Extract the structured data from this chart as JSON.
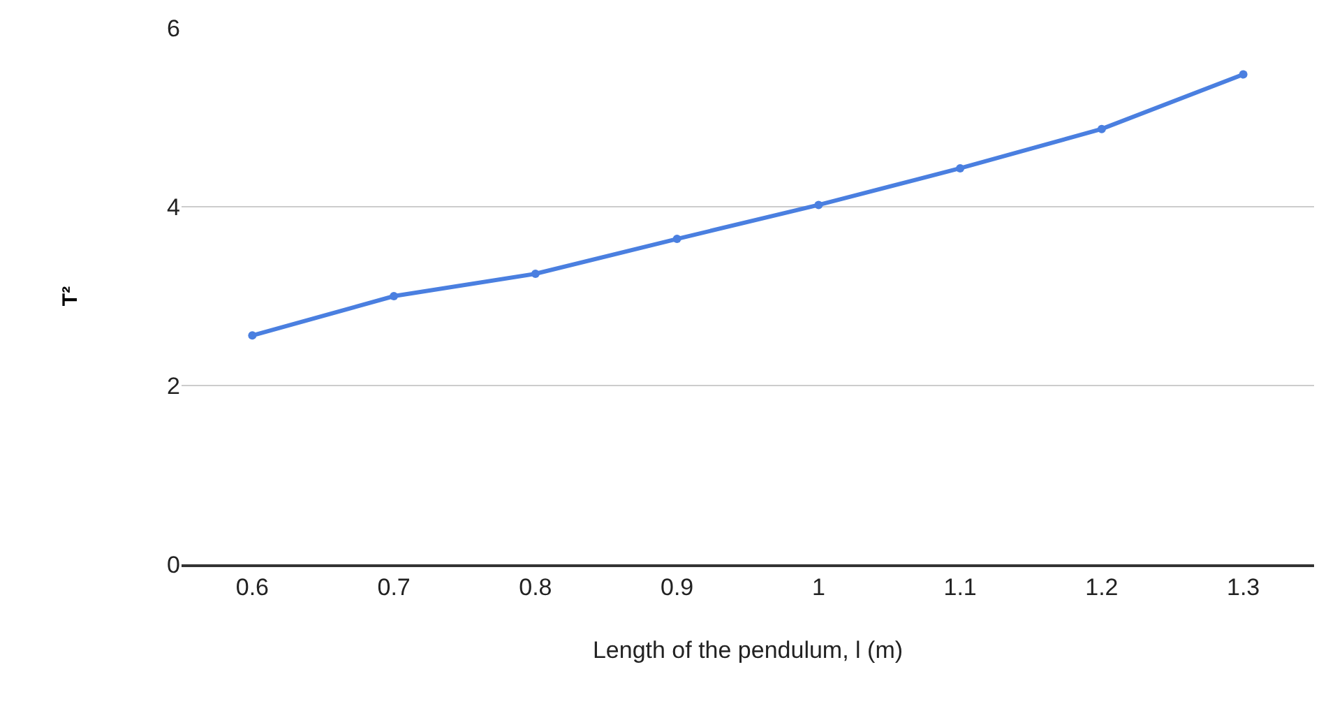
{
  "chart_data": {
    "type": "line",
    "xlabel": "Length of the pendulum, l (m)",
    "ylabel": "T²",
    "categories": [
      "0.6",
      "0.7",
      "0.8",
      "0.9",
      "1",
      "1.1",
      "1.2",
      "1.3"
    ],
    "series": [
      {
        "color": "#4a7fe0",
        "values": [
          2.56,
          3.0,
          3.25,
          3.64,
          4.02,
          4.43,
          4.87,
          5.48
        ]
      }
    ],
    "ylim": [
      0,
      6
    ],
    "yticks": [
      0,
      2,
      4,
      6
    ],
    "grid": "y",
    "marker": "circle",
    "line_style": "solid",
    "legend": false
  }
}
